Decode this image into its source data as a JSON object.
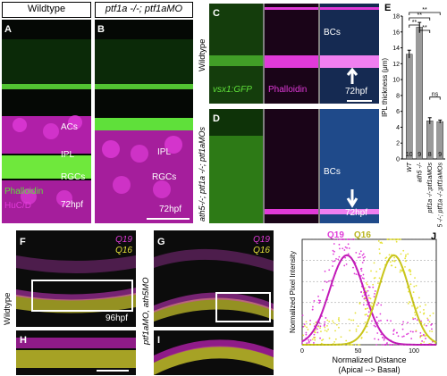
{
  "headers": {
    "wildtype": "Wildtype",
    "mutant": "ptf1a -/-; ptf1aMO"
  },
  "panels": {
    "A": {
      "letter": "A",
      "labels": {
        "acs": "ACs",
        "ipl": "IPL",
        "rgcs": "RGCs",
        "phalloidin": "Phalloidin",
        "hucd": "HuC/D",
        "time": "72hpf"
      }
    },
    "B": {
      "letter": "B",
      "labels": {
        "ipl": "IPL",
        "rgcs": "RGCs",
        "time": "72hpf"
      }
    },
    "C": {
      "letter": "C",
      "labels": {
        "vsx1": "vsx1:GFP",
        "phalloidin": "Phalloidin",
        "bcs": "BCs",
        "time": "72hpf"
      }
    },
    "D": {
      "letter": "D",
      "labels": {
        "bcs": "BCs",
        "time": "72hpf"
      }
    },
    "F": {
      "letter": "F",
      "labels": {
        "q19": "Q19",
        "q16": "Q16",
        "time": "96hpf"
      }
    },
    "G": {
      "letter": "G",
      "labels": {
        "q19": "Q19",
        "q16": "Q16"
      }
    },
    "H": {
      "letter": "H"
    },
    "I": {
      "letter": "I"
    }
  },
  "side_labels": {
    "wildtype_cd": "Wildtype",
    "mutant_cd": "ath5-/-; ptf1a -/-; ptf1aMOs",
    "wildtype_fh": "Wildtype",
    "mutant_gi": "ptf1aMO, ath5MO"
  },
  "colors": {
    "green": "#5fe03a",
    "magenta": "#e03ad8",
    "yellow": "#e6e23a",
    "blue": "#3a6ee0"
  },
  "chart_data": [
    {
      "panel": "E",
      "type": "bar",
      "ylabel": "IPL thickness (μm)",
      "ylim": [
        0,
        18
      ],
      "yticks": [
        0,
        2,
        4,
        6,
        8,
        10,
        12,
        14,
        16,
        18
      ],
      "categories": [
        "WT",
        "ath5 -/-",
        "ptf1a -/-;ptf1aMOs",
        "ath5 -/-; ptf1a -/-;ptf1aMOs"
      ],
      "values": [
        13.2,
        16.6,
        4.8,
        4.7
      ],
      "errors": [
        0.5,
        0.6,
        0.4,
        0.2
      ],
      "n": [
        "10",
        "9",
        "8",
        "9"
      ],
      "significance": [
        {
          "pair": [
            0,
            1
          ],
          "label": "**"
        },
        {
          "pair": [
            0,
            2
          ],
          "label": "**"
        },
        {
          "pair": [
            1,
            2
          ],
          "label": "**"
        },
        {
          "pair": [
            0,
            3
          ],
          "label": "**"
        },
        {
          "pair": [
            2,
            3
          ],
          "label": "ns"
        }
      ],
      "letter": "E"
    },
    {
      "panel": "J",
      "type": "scatter",
      "xlabel": "Normalized Distance\n(Apical --> Basal)",
      "ylabel": "Normalized Pixel Intensity",
      "xticks": [
        0,
        50,
        100
      ],
      "yticks": [
        0,
        0.2,
        0.4,
        0.6,
        0.8,
        1
      ],
      "legend": [
        {
          "name": "Q19",
          "color": "#e03ad8"
        },
        {
          "name": "Q16",
          "color": "#e6e23a"
        }
      ],
      "letter": "J"
    }
  ]
}
